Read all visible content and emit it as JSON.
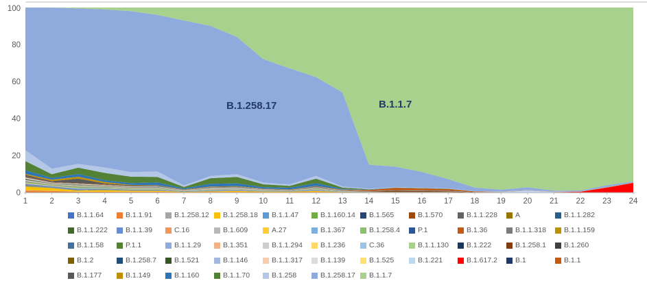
{
  "chart_data": {
    "type": "area",
    "stacking": "percent",
    "title": "",
    "xlabel": "",
    "ylabel": "",
    "x": [
      1,
      2,
      3,
      4,
      5,
      6,
      7,
      8,
      9,
      10,
      11,
      12,
      13,
      14,
      15,
      16,
      17,
      18,
      19,
      20,
      21,
      22,
      23,
      24
    ],
    "y_axis": {
      "ticks": [
        0,
        20,
        40,
        60,
        80,
        100
      ],
      "range": [
        0,
        100
      ]
    },
    "grid": "off",
    "legend_position": "bottom",
    "area_labels": [
      {
        "text": "B.1.258.17",
        "color": "#223A66"
      },
      {
        "text": "B.1.1.7",
        "color": "#223A66"
      }
    ],
    "axis_text_color": "#595959",
    "default_minor_values": [
      0.1,
      0.06,
      0.08,
      0.06,
      0.05,
      0.05,
      0.02,
      0.04,
      0.04,
      0.03,
      0.02,
      0.04,
      0.02,
      0.01,
      0.01,
      0.01,
      0.01,
      0,
      0,
      0,
      0,
      0,
      0,
      0
    ],
    "series": [
      {
        "name": "B.1.1.64",
        "color": "#4472C4"
      },
      {
        "name": "B.1.1.91",
        "color": "#ED7D31",
        "values": [
          1,
          0.8,
          0.3,
          0.3,
          0.3,
          0.3,
          0.1,
          0.2,
          0.2,
          0.1,
          0.1,
          0.2,
          0.1,
          0,
          0,
          0,
          0,
          0,
          0,
          0,
          0,
          0,
          0,
          0
        ]
      },
      {
        "name": "B.1.258.12",
        "color": "#A5A5A5"
      },
      {
        "name": "B.1.258.18",
        "color": "#FFC000",
        "values": [
          2,
          1.5,
          0.5,
          0.8,
          0.5,
          0.5,
          0.2,
          0.3,
          0.5,
          0.3,
          0.3,
          0.5,
          0.1,
          0.1,
          0,
          0,
          0,
          0,
          0,
          0,
          0,
          0,
          0,
          0
        ]
      },
      {
        "name": "B.1.1.47",
        "color": "#5B9BD5"
      },
      {
        "name": "B.1.160.14",
        "color": "#70AD47"
      },
      {
        "name": "B.1.565",
        "color": "#264478"
      },
      {
        "name": "B.1.570",
        "color": "#9E480E"
      },
      {
        "name": "B.1.1.228",
        "color": "#636363"
      },
      {
        "name": "A",
        "color": "#997300"
      },
      {
        "name": "B.1.1.282",
        "color": "#255E91"
      },
      {
        "name": "B.1.1.222",
        "color": "#43682B"
      },
      {
        "name": "B.1.1.39",
        "color": "#698ED0",
        "values": [
          0.8,
          0.5,
          0.5,
          0.4,
          0.3,
          0.3,
          0.2,
          0.3,
          0.3,
          0.2,
          0.2,
          0.3,
          0.1,
          0,
          0,
          0,
          0,
          0,
          0,
          0,
          0,
          0,
          0,
          0
        ]
      },
      {
        "name": "C.16",
        "color": "#F1975A"
      },
      {
        "name": "B.1.609",
        "color": "#B7B7B7"
      },
      {
        "name": "A.27",
        "color": "#FFCD33"
      },
      {
        "name": "B.1.367",
        "color": "#7CAFDD"
      },
      {
        "name": "B.1.258.4",
        "color": "#8CC168",
        "values": [
          0.5,
          0.3,
          0.5,
          0.3,
          0.3,
          0.3,
          0.1,
          0.2,
          0.2,
          0.1,
          0.1,
          0.3,
          0.1,
          0,
          0,
          0,
          0,
          0,
          0,
          0,
          0,
          0,
          0,
          0
        ]
      },
      {
        "name": "P.1",
        "color": "#2F5597"
      },
      {
        "name": "B.1.36",
        "color": "#C45911"
      },
      {
        "name": "B.1.1.318",
        "color": "#7B7B7B"
      },
      {
        "name": "B.1.1.159",
        "color": "#BF9000"
      },
      {
        "name": "B.1.1.58",
        "color": "#41719C"
      },
      {
        "name": "P.1.1",
        "color": "#548235"
      },
      {
        "name": "B.1.1.29",
        "color": "#8FAADC"
      },
      {
        "name": "B.1.351",
        "color": "#F4B183"
      },
      {
        "name": "B.1.1.294",
        "color": "#CFCDCD"
      },
      {
        "name": "B.1.236",
        "color": "#FFD966"
      },
      {
        "name": "C.36",
        "color": "#9DC3E6"
      },
      {
        "name": "B.1.1.130",
        "color": "#A9D18E"
      },
      {
        "name": "B.1.222",
        "color": "#17375E"
      },
      {
        "name": "B.1.258.1",
        "color": "#823B0B",
        "values": [
          0.2,
          0.1,
          0.1,
          0.1,
          0.1,
          0.1,
          0,
          0.1,
          0.1,
          0,
          0,
          0.1,
          0.1,
          0.2,
          0.6,
          0.5,
          0.4,
          0.1,
          0,
          0,
          0,
          0,
          0,
          0
        ]
      },
      {
        "name": "B.1.260",
        "color": "#404040"
      },
      {
        "name": "B.1.2",
        "color": "#7F6000"
      },
      {
        "name": "B.1.258.7",
        "color": "#1F4E79"
      },
      {
        "name": "B.1.521",
        "color": "#375623"
      },
      {
        "name": "B.1.146",
        "color": "#A2B8E1"
      },
      {
        "name": "B.1.1.317",
        "color": "#F8CBAD"
      },
      {
        "name": "B.1.139",
        "color": "#DBDBDB"
      },
      {
        "name": "B.1.525",
        "color": "#FFE070"
      },
      {
        "name": "B.1.221",
        "color": "#BDD7EE",
        "values": [
          0.2,
          0.1,
          0.1,
          0.1,
          0.1,
          0.1,
          0,
          0.1,
          0.1,
          0,
          0,
          0.1,
          0,
          0.1,
          0.1,
          0.1,
          0.1,
          0.1,
          0.3,
          1,
          0.3,
          0.1,
          0.1,
          0.1
        ]
      },
      {
        "name": "B.1.617.2",
        "color": "#FF0000",
        "values": [
          0,
          0,
          0,
          0,
          0,
          0,
          0,
          0,
          0,
          0,
          0,
          0,
          0,
          0,
          0,
          0,
          0,
          0,
          0,
          0,
          0,
          0.3,
          2.5,
          5
        ]
      },
      {
        "name": "B.1",
        "color": "#203864",
        "values": [
          0.2,
          0.1,
          0.1,
          0.1,
          0.1,
          0.1,
          0,
          0.1,
          0.1,
          0,
          0,
          0.1,
          0,
          0.1,
          0.2,
          0.2,
          0.2,
          0.1,
          0,
          0,
          0,
          0,
          0,
          0
        ]
      },
      {
        "name": "B.1.1",
        "color": "#C55A11",
        "values": [
          0.3,
          0.2,
          0.2,
          0.2,
          0.1,
          0.1,
          0.1,
          0.1,
          0.1,
          0.1,
          0.1,
          0.1,
          0.2,
          0.5,
          1.2,
          1,
          0.8,
          0.3,
          0.1,
          0.1,
          0.1,
          0.1,
          0.2,
          0.2
        ]
      },
      {
        "name": "B.1.177",
        "color": "#595959",
        "values": [
          1,
          0.5,
          2.5,
          0.6,
          0.4,
          0.3,
          0.2,
          0.3,
          0.3,
          0.2,
          0.2,
          0.3,
          0.1,
          0.1,
          0.1,
          0.1,
          0.1,
          0,
          0,
          0,
          0,
          0,
          0,
          0
        ]
      },
      {
        "name": "B.1.149",
        "color": "#BF8F00",
        "values": [
          0.5,
          0.8,
          1,
          0.8,
          0.2,
          0.2,
          0.1,
          0.2,
          0.2,
          0.1,
          0.1,
          0.2,
          0.1,
          0,
          0,
          0,
          0,
          0,
          0,
          0,
          0,
          0,
          0,
          0
        ]
      },
      {
        "name": "B.1.160",
        "color": "#2E75B6",
        "values": [
          2,
          1,
          1.5,
          1,
          1,
          1.5,
          0.5,
          1.5,
          1.5,
          0.8,
          0.8,
          1.5,
          0.4,
          0.1,
          0.1,
          0.1,
          0.1,
          0,
          0,
          0,
          0,
          0,
          0,
          0
        ]
      },
      {
        "name": "B.1.1.70",
        "color": "#538135",
        "values": [
          5,
          2,
          3.5,
          4,
          3.5,
          3,
          0.8,
          3,
          3.5,
          1.5,
          1,
          2.5,
          0.7,
          0.2,
          0.1,
          0.1,
          0.1,
          0,
          0,
          0,
          0,
          0,
          0,
          0
        ]
      },
      {
        "name": "B.1.258",
        "color": "#B4C7E7",
        "values": [
          6,
          3,
          2,
          3,
          2.5,
          3,
          0.8,
          1.2,
          1.5,
          1,
          0.7,
          1.5,
          0.5,
          0.3,
          0.2,
          0.2,
          0.1,
          0.1,
          0.1,
          0.2,
          0.1,
          0.1,
          0.1,
          0.1
        ]
      },
      {
        "name": "B.1.258.17",
        "color": "#8FAADC",
        "values": [
          78,
          88,
          85,
          87,
          88,
          86,
          89,
          82,
          75,
          67,
          63,
          54,
          51,
          13,
          11,
          8.5,
          5,
          2,
          1,
          1.5,
          0.5,
          0.5,
          1,
          0.5
        ]
      },
      {
        "name": "B.1.1.7",
        "color": "#A9D18E",
        "values": [
          0,
          0,
          0.5,
          1,
          2,
          4,
          7,
          10,
          16,
          28,
          33,
          38,
          46,
          85,
          86,
          89,
          92.5,
          96.5,
          98,
          96.5,
          98.5,
          98,
          95,
          93
        ]
      }
    ]
  }
}
